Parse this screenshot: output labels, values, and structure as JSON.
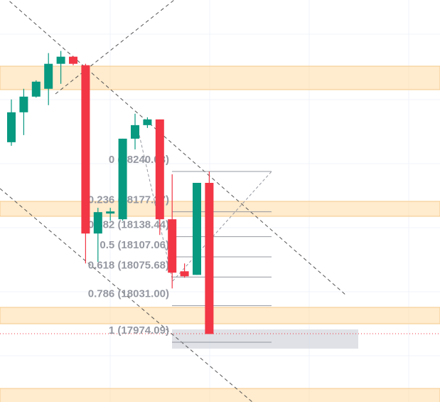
{
  "chart_data": {
    "type": "candlestick",
    "up_color": "#089981",
    "down_color": "#f23645",
    "candles": [
      {
        "open": 18285.6,
        "close": 18332.2,
        "high": 18352.2,
        "low": 18280.0
      },
      {
        "open": 18332.2,
        "close": 18356.6,
        "high": 18368.8,
        "low": 18296.7
      },
      {
        "open": 18356.6,
        "close": 18379.9,
        "high": 18382.0,
        "low": 18355.0
      },
      {
        "open": 18368.8,
        "close": 18407.7,
        "high": 18424.4,
        "low": 18343.3
      },
      {
        "open": 18407.7,
        "close": 18418.8,
        "high": 18427.7,
        "low": 18376.6
      },
      {
        "open": 18418.8,
        "close": 18407.7,
        "high": 18419.9,
        "low": 18405.5
      },
      {
        "open": 18405.5,
        "close": 18143.4,
        "high": 18407.7,
        "low": 18096.8
      },
      {
        "open": 18143.4,
        "close": 18176.7,
        "high": 18183.4,
        "low": 18099.0
      },
      {
        "open": 18174.5,
        "close": 18177.8,
        "high": 18183.4,
        "low": 18163.4
      },
      {
        "open": 18165.6,
        "close": 18291.1,
        "high": 18291.1,
        "low": 18163.4
      },
      {
        "open": 18291.1,
        "close": 18312.2,
        "high": 18330.0,
        "low": 18274.4
      },
      {
        "open": 18312.2,
        "close": 18321.1,
        "high": 18324.4,
        "low": 18307.8
      },
      {
        "open": 18321.1,
        "close": 18165.6,
        "high": 18321.1,
        "low": 18141.2
      },
      {
        "open": 18165.6,
        "close": 18082.4,
        "high": 18235.6,
        "low": 18057.9
      },
      {
        "open": 18084.6,
        "close": 18076.8,
        "high": 18096.8,
        "low": 18074.6
      },
      {
        "open": 18079.0,
        "close": 18222.3,
        "high": 18222.3,
        "low": 18079.0
      },
      {
        "open": 18222.3,
        "close": 17986.9,
        "high": 18240.0,
        "low": 17986.9
      }
    ],
    "fib_levels": [
      {
        "label": "0 (18240.03)",
        "price": 18240.03
      },
      {
        "label": "0.236 (18177.27)",
        "price": 18177.27
      },
      {
        "label": "0.382 (18138.44)",
        "price": 18138.44
      },
      {
        "label": "0.5 (18107.06)",
        "price": 18107.06
      },
      {
        "label": "0.618 (18075.68)",
        "price": 18075.68
      },
      {
        "label": "0.786 (18031.00)",
        "price": 18031.0
      },
      {
        "label": "1 (17974.09)",
        "price": 17974.09
      }
    ]
  }
}
